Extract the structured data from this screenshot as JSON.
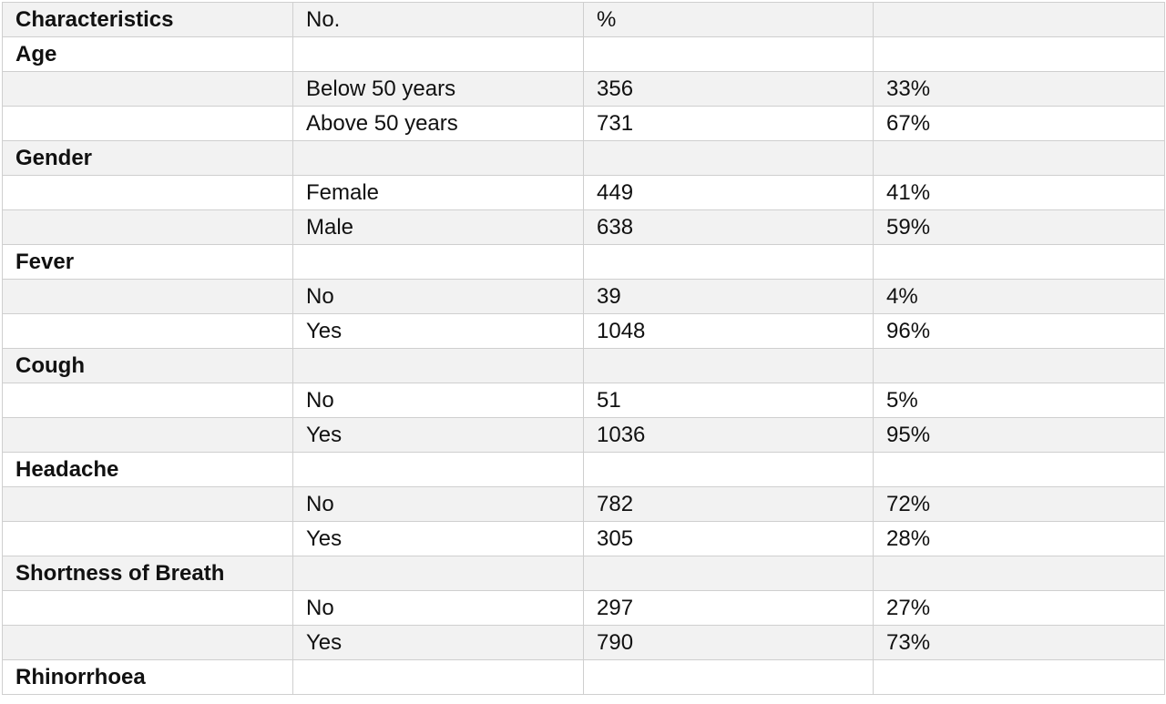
{
  "table": {
    "header": [
      "Characteristics",
      "No.",
      "%",
      ""
    ],
    "rows": [
      {
        "cells": [
          "Age",
          "",
          "",
          ""
        ],
        "group": true
      },
      {
        "cells": [
          "",
          "Below 50 years",
          "356",
          "33%"
        ],
        "group": false
      },
      {
        "cells": [
          "",
          "Above 50 years",
          "731",
          "67%"
        ],
        "group": false
      },
      {
        "cells": [
          "Gender",
          "",
          "",
          ""
        ],
        "group": true
      },
      {
        "cells": [
          "",
          "Female",
          "449",
          "41%"
        ],
        "group": false
      },
      {
        "cells": [
          "",
          "Male",
          "638",
          "59%"
        ],
        "group": false
      },
      {
        "cells": [
          "Fever",
          "",
          "",
          ""
        ],
        "group": true
      },
      {
        "cells": [
          "",
          "No",
          "39",
          "4%"
        ],
        "group": false
      },
      {
        "cells": [
          "",
          "Yes",
          "1048",
          "96%"
        ],
        "group": false
      },
      {
        "cells": [
          "Cough",
          "",
          "",
          ""
        ],
        "group": true
      },
      {
        "cells": [
          "",
          "No",
          "51",
          "5%"
        ],
        "group": false
      },
      {
        "cells": [
          "",
          "Yes",
          "1036",
          "95%"
        ],
        "group": false
      },
      {
        "cells": [
          "Headache",
          "",
          "",
          ""
        ],
        "group": true
      },
      {
        "cells": [
          "",
          "No",
          "782",
          "72%"
        ],
        "group": false
      },
      {
        "cells": [
          "",
          "Yes",
          "305",
          "28%"
        ],
        "group": false
      },
      {
        "cells": [
          "Shortness of Breath",
          "",
          "",
          ""
        ],
        "group": true
      },
      {
        "cells": [
          "",
          "No",
          "297",
          "27%"
        ],
        "group": false
      },
      {
        "cells": [
          "",
          "Yes",
          "790",
          "73%"
        ],
        "group": false
      },
      {
        "cells": [
          "Rhinorrhoea",
          "",
          "",
          ""
        ],
        "group": true
      }
    ]
  },
  "colors": {
    "shaded_row": "#f2f2f2",
    "plain_row": "#ffffff",
    "border": "#cfcfcf",
    "text": "#111111"
  }
}
